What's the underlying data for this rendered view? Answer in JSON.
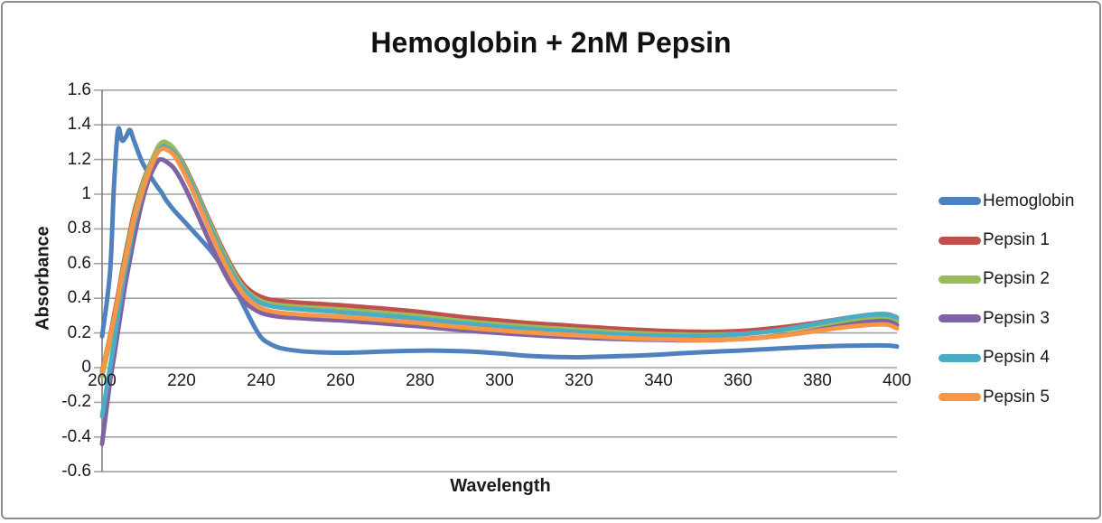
{
  "title": "Hemoglobin + 2nM Pepsin",
  "colors": {
    "gridline": "#A2A2A2",
    "axis_line": "#7F7F7F",
    "text": "#1A1A1A",
    "frame_border": "#8D8D8D",
    "background": "#FFFFFF"
  },
  "chart_data": {
    "type": "line",
    "title": "Hemoglobin + 2nM Pepsin",
    "xlabel": "Wavelength",
    "ylabel": "Absorbance",
    "xlim": [
      200,
      400
    ],
    "ylim": [
      -0.6,
      1.6
    ],
    "grid": "horizontal",
    "legend_position": "right-middle",
    "x_ticks": [
      200,
      220,
      240,
      260,
      280,
      300,
      320,
      340,
      360,
      380,
      400
    ],
    "x_tick_labels": [
      "200",
      "220",
      "240",
      "260",
      "280",
      "300",
      "320",
      "340",
      "360",
      "380",
      "400"
    ],
    "y_ticks": [
      1.6,
      1.4,
      1.2,
      1,
      0.8,
      0.6,
      0.4,
      0.2,
      0,
      -0.2,
      -0.4,
      -0.6
    ],
    "y_tick_labels": [
      "1.6",
      "1.4",
      "1.2",
      "1",
      "0.8",
      "0.6",
      "0.4",
      "0.2",
      "0",
      "-0.2",
      "-0.4",
      "-0.6"
    ],
    "x": [
      200,
      202,
      203,
      204,
      205,
      206,
      207,
      208,
      210,
      212,
      214,
      215,
      216,
      218,
      220,
      222,
      224,
      226,
      228,
      230,
      232,
      234,
      236,
      238,
      240,
      242,
      245,
      250,
      255,
      260,
      265,
      270,
      275,
      280,
      285,
      290,
      295,
      300,
      305,
      310,
      315,
      320,
      325,
      330,
      335,
      340,
      345,
      350,
      355,
      360,
      365,
      370,
      375,
      380,
      385,
      390,
      395,
      398,
      400
    ],
    "series": [
      {
        "name": "Hemoglobin",
        "color": "#4F81BD",
        "values": [
          0.18,
          0.55,
          1.05,
          1.37,
          1.31,
          1.33,
          1.37,
          1.31,
          1.19,
          1.11,
          1.04,
          1.01,
          0.97,
          0.91,
          0.86,
          0.81,
          0.76,
          0.71,
          0.655,
          0.59,
          0.515,
          0.43,
          0.34,
          0.25,
          0.175,
          0.14,
          0.112,
          0.095,
          0.088,
          0.086,
          0.088,
          0.092,
          0.096,
          0.098,
          0.098,
          0.095,
          0.09,
          0.082,
          0.072,
          0.065,
          0.061,
          0.06,
          0.063,
          0.066,
          0.07,
          0.075,
          0.082,
          0.088,
          0.093,
          0.098,
          0.104,
          0.11,
          0.116,
          0.121,
          0.125,
          0.127,
          0.128,
          0.127,
          0.122
        ]
      },
      {
        "name": "Pepsin 1",
        "color": "#C0504D",
        "values": [
          -0.02,
          0.18,
          0.3,
          0.42,
          0.55,
          0.67,
          0.78,
          0.89,
          1.05,
          1.17,
          1.26,
          1.285,
          1.29,
          1.262,
          1.196,
          1.105,
          1.005,
          0.9,
          0.8,
          0.7,
          0.61,
          0.53,
          0.47,
          0.432,
          0.408,
          0.394,
          0.384,
          0.374,
          0.367,
          0.36,
          0.351,
          0.342,
          0.332,
          0.321,
          0.307,
          0.293,
          0.282,
          0.272,
          0.262,
          0.253,
          0.246,
          0.238,
          0.231,
          0.224,
          0.218,
          0.213,
          0.209,
          0.207,
          0.207,
          0.211,
          0.219,
          0.23,
          0.244,
          0.26,
          0.278,
          0.296,
          0.309,
          0.306,
          0.289
        ]
      },
      {
        "name": "Pepsin 2",
        "color": "#9BBB59",
        "values": [
          -0.05,
          0.15,
          0.27,
          0.4,
          0.53,
          0.65,
          0.76,
          0.87,
          1.04,
          1.165,
          1.27,
          1.297,
          1.3,
          1.266,
          1.188,
          1.096,
          0.996,
          0.89,
          0.79,
          0.688,
          0.598,
          0.515,
          0.452,
          0.412,
          0.385,
          0.371,
          0.36,
          0.35,
          0.343,
          0.336,
          0.327,
          0.318,
          0.308,
          0.298,
          0.284,
          0.271,
          0.26,
          0.25,
          0.241,
          0.232,
          0.225,
          0.218,
          0.211,
          0.204,
          0.199,
          0.194,
          0.191,
          0.189,
          0.19,
          0.194,
          0.202,
          0.213,
          0.227,
          0.243,
          0.261,
          0.279,
          0.291,
          0.288,
          0.269
        ]
      },
      {
        "name": "Pepsin 3",
        "color": "#8064A2",
        "values": [
          -0.44,
          -0.08,
          0.06,
          0.21,
          0.36,
          0.5,
          0.62,
          0.74,
          0.95,
          1.1,
          1.19,
          1.2,
          1.19,
          1.152,
          1.078,
          0.985,
          0.885,
          0.78,
          0.678,
          0.583,
          0.497,
          0.427,
          0.375,
          0.34,
          0.316,
          0.303,
          0.293,
          0.285,
          0.278,
          0.272,
          0.264,
          0.256,
          0.247,
          0.238,
          0.227,
          0.217,
          0.208,
          0.2,
          0.192,
          0.185,
          0.179,
          0.174,
          0.169,
          0.165,
          0.162,
          0.16,
          0.158,
          0.158,
          0.159,
          0.164,
          0.172,
          0.184,
          0.199,
          0.217,
          0.237,
          0.256,
          0.268,
          0.265,
          0.247
        ]
      },
      {
        "name": "Pepsin 4",
        "color": "#4BACC6",
        "values": [
          -0.28,
          0.0,
          0.14,
          0.3,
          0.45,
          0.58,
          0.7,
          0.82,
          1.0,
          1.14,
          1.243,
          1.268,
          1.272,
          1.242,
          1.17,
          1.08,
          0.98,
          0.873,
          0.77,
          0.668,
          0.578,
          0.5,
          0.44,
          0.4,
          0.372,
          0.358,
          0.346,
          0.336,
          0.328,
          0.32,
          0.311,
          0.302,
          0.292,
          0.282,
          0.269,
          0.257,
          0.246,
          0.236,
          0.227,
          0.219,
          0.212,
          0.205,
          0.198,
          0.192,
          0.187,
          0.184,
          0.182,
          0.182,
          0.185,
          0.191,
          0.201,
          0.215,
          0.234,
          0.255,
          0.277,
          0.296,
          0.307,
          0.304,
          0.286
        ]
      },
      {
        "name": "Pepsin 5",
        "color": "#F79646",
        "values": [
          -0.03,
          0.17,
          0.28,
          0.4,
          0.52,
          0.63,
          0.74,
          0.85,
          1.005,
          1.14,
          1.24,
          1.26,
          1.26,
          1.228,
          1.152,
          1.06,
          0.958,
          0.85,
          0.744,
          0.642,
          0.552,
          0.474,
          0.413,
          0.37,
          0.342,
          0.328,
          0.316,
          0.306,
          0.3,
          0.293,
          0.285,
          0.276,
          0.267,
          0.257,
          0.245,
          0.234,
          0.224,
          0.215,
          0.206,
          0.199,
          0.192,
          0.186,
          0.179,
          0.173,
          0.168,
          0.164,
          0.161,
          0.159,
          0.16,
          0.164,
          0.171,
          0.182,
          0.196,
          0.212,
          0.228,
          0.241,
          0.249,
          0.246,
          0.227
        ]
      }
    ]
  }
}
